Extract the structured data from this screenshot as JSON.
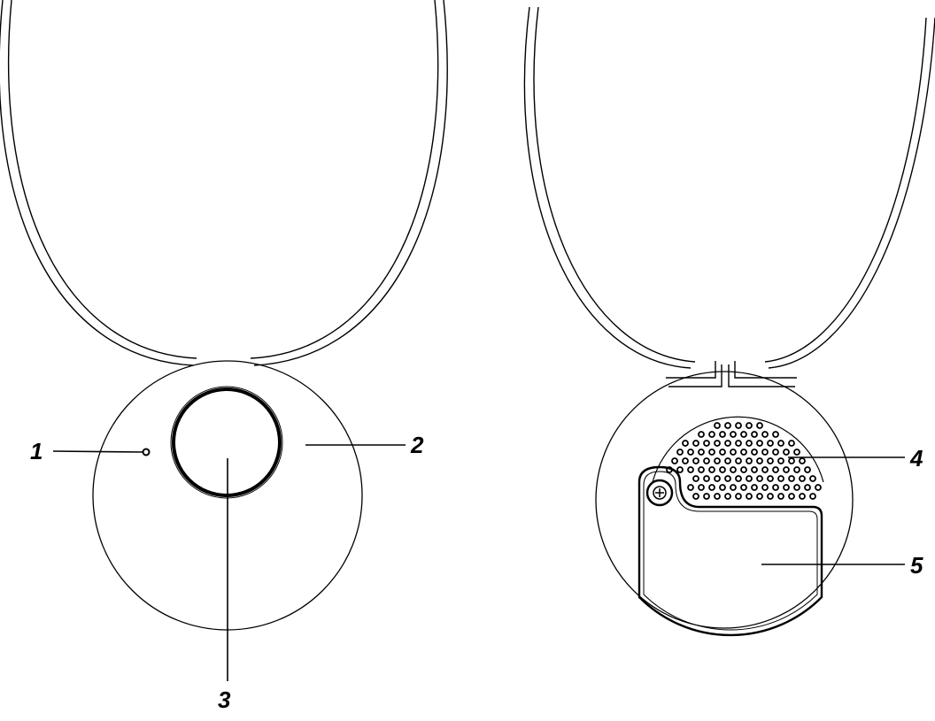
{
  "diagram": {
    "front_view": {
      "callouts": [
        {
          "id": "1",
          "label": "1"
        },
        {
          "id": "2",
          "label": "2"
        },
        {
          "id": "3",
          "label": "3"
        }
      ]
    },
    "back_view": {
      "callouts": [
        {
          "id": "4",
          "label": "4"
        },
        {
          "id": "5",
          "label": "5"
        }
      ]
    },
    "colors": {
      "line": "#000000",
      "background": "#ffffff"
    }
  }
}
